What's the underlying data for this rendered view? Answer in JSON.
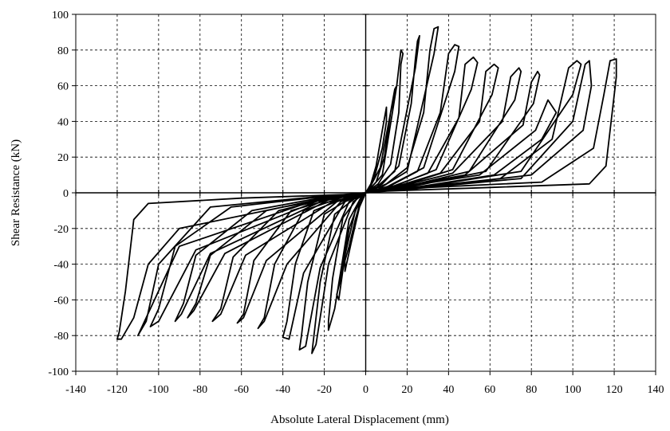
{
  "chart_data": {
    "type": "line",
    "title": "",
    "xlabel": "Absolute Lateral Displacement  (mm)",
    "ylabel": "Shear Resistance (kN)",
    "xlim": [
      -140,
      140
    ],
    "ylim": [
      -100,
      100
    ],
    "xticks": [
      -140,
      -120,
      -100,
      -80,
      -60,
      -40,
      -20,
      0,
      20,
      40,
      60,
      80,
      100,
      120,
      140
    ],
    "yticks": [
      -100,
      -80,
      -60,
      -40,
      -20,
      0,
      20,
      40,
      60,
      80,
      100
    ],
    "grid": true,
    "legend": "none",
    "line_color": "#000000",
    "series": [
      {
        "description": "hysteresis loop",
        "values": [
          [
            0,
            0
          ],
          [
            4,
            8
          ],
          [
            8,
            25
          ],
          [
            10,
            40
          ],
          [
            10,
            48
          ],
          [
            8,
            35
          ],
          [
            5,
            15
          ],
          [
            2,
            3
          ],
          [
            0,
            0
          ],
          [
            -2,
            -3
          ],
          [
            -5,
            -15
          ],
          [
            -8,
            -30
          ],
          [
            -10,
            -38
          ],
          [
            -10,
            -44
          ],
          [
            -7,
            -28
          ],
          [
            -3,
            -8
          ],
          [
            0,
            0
          ],
          [
            5,
            6
          ],
          [
            9,
            20
          ],
          [
            12,
            45
          ],
          [
            14,
            58
          ],
          [
            15,
            60
          ],
          [
            12,
            45
          ],
          [
            7,
            14
          ],
          [
            2,
            3
          ],
          [
            -3,
            -4
          ],
          [
            -8,
            -20
          ],
          [
            -12,
            -48
          ],
          [
            -14,
            -57
          ],
          [
            -13,
            -60
          ],
          [
            -10,
            -35
          ],
          [
            -5,
            -10
          ],
          [
            0,
            0
          ],
          [
            6,
            5
          ],
          [
            12,
            16
          ],
          [
            16,
            45
          ],
          [
            17,
            72
          ],
          [
            18,
            78
          ],
          [
            17,
            80
          ],
          [
            15,
            60
          ],
          [
            8,
            10
          ],
          [
            2,
            2
          ],
          [
            -4,
            -3
          ],
          [
            -11,
            -14
          ],
          [
            -16,
            -48
          ],
          [
            -18,
            -72
          ],
          [
            -18,
            -77
          ],
          [
            -15,
            -65
          ],
          [
            -8,
            -15
          ],
          [
            -2,
            -2
          ],
          [
            0,
            0
          ],
          [
            8,
            5
          ],
          [
            16,
            15
          ],
          [
            22,
            50
          ],
          [
            24,
            75
          ],
          [
            25,
            85
          ],
          [
            26,
            88
          ],
          [
            24,
            70
          ],
          [
            14,
            12
          ],
          [
            4,
            2
          ],
          [
            -4,
            -2
          ],
          [
            -15,
            -12
          ],
          [
            -22,
            -50
          ],
          [
            -25,
            -80
          ],
          [
            -26,
            -90
          ],
          [
            -24,
            -85
          ],
          [
            -18,
            -40
          ],
          [
            -6,
            -5
          ],
          [
            0,
            0
          ],
          [
            10,
            5
          ],
          [
            20,
            14
          ],
          [
            28,
            45
          ],
          [
            31,
            80
          ],
          [
            33,
            92
          ],
          [
            35,
            93
          ],
          [
            33,
            78
          ],
          [
            20,
            12
          ],
          [
            6,
            2
          ],
          [
            -6,
            -2
          ],
          [
            -20,
            -12
          ],
          [
            -28,
            -50
          ],
          [
            -31,
            -80
          ],
          [
            -32,
            -88
          ],
          [
            -29,
            -86
          ],
          [
            -22,
            -42
          ],
          [
            -8,
            -5
          ],
          [
            0,
            0
          ],
          [
            12,
            4
          ],
          [
            25,
            12
          ],
          [
            36,
            45
          ],
          [
            40,
            78
          ],
          [
            43,
            83
          ],
          [
            45,
            82
          ],
          [
            43,
            68
          ],
          [
            28,
            14
          ],
          [
            8,
            2
          ],
          [
            -8,
            -2
          ],
          [
            -25,
            -10
          ],
          [
            -34,
            -40
          ],
          [
            -38,
            -72
          ],
          [
            -40,
            -81
          ],
          [
            -37,
            -82
          ],
          [
            -30,
            -45
          ],
          [
            -10,
            -5
          ],
          [
            0,
            0
          ],
          [
            14,
            4
          ],
          [
            30,
            11
          ],
          [
            45,
            42
          ],
          [
            48,
            72
          ],
          [
            52,
            76
          ],
          [
            54,
            73
          ],
          [
            51,
            58
          ],
          [
            34,
            13
          ],
          [
            10,
            2
          ],
          [
            -10,
            -2
          ],
          [
            -30,
            -10
          ],
          [
            -44,
            -40
          ],
          [
            -49,
            -70
          ],
          [
            -52,
            -76
          ],
          [
            -49,
            -72
          ],
          [
            -38,
            -40
          ],
          [
            -12,
            -5
          ],
          [
            0,
            0
          ],
          [
            16,
            4
          ],
          [
            36,
            11
          ],
          [
            55,
            40
          ],
          [
            58,
            68
          ],
          [
            62,
            72
          ],
          [
            64,
            70
          ],
          [
            61,
            55
          ],
          [
            42,
            13
          ],
          [
            12,
            2
          ],
          [
            -12,
            -2
          ],
          [
            -36,
            -10
          ],
          [
            -54,
            -38
          ],
          [
            -59,
            -68
          ],
          [
            -62,
            -73
          ],
          [
            -59,
            -70
          ],
          [
            -48,
            -38
          ],
          [
            -14,
            -5
          ],
          [
            0,
            0
          ],
          [
            18,
            4
          ],
          [
            42,
            11
          ],
          [
            66,
            40
          ],
          [
            70,
            65
          ],
          [
            74,
            70
          ],
          [
            75,
            68
          ],
          [
            72,
            52
          ],
          [
            50,
            12
          ],
          [
            14,
            2
          ],
          [
            -14,
            -2
          ],
          [
            -42,
            -10
          ],
          [
            -64,
            -36
          ],
          [
            -70,
            -65
          ],
          [
            -74,
            -72
          ],
          [
            -70,
            -68
          ],
          [
            -58,
            -35
          ],
          [
            -16,
            -5
          ],
          [
            0,
            0
          ],
          [
            20,
            4
          ],
          [
            48,
            10
          ],
          [
            76,
            38
          ],
          [
            80,
            62
          ],
          [
            83,
            68
          ],
          [
            84,
            66
          ],
          [
            81,
            50
          ],
          [
            58,
            12
          ],
          [
            16,
            2
          ],
          [
            -16,
            -2
          ],
          [
            -48,
            -10
          ],
          [
            -75,
            -35
          ],
          [
            -82,
            -62
          ],
          [
            -86,
            -70
          ],
          [
            -83,
            -66
          ],
          [
            -68,
            -34
          ],
          [
            -18,
            -4
          ],
          [
            0,
            0
          ],
          [
            22,
            4
          ],
          [
            55,
            10
          ],
          [
            82,
            35
          ],
          [
            88,
            52
          ],
          [
            92,
            45
          ],
          [
            85,
            30
          ],
          [
            62,
            10
          ],
          [
            18,
            2
          ],
          [
            -18,
            -2
          ],
          [
            -55,
            -10
          ],
          [
            -82,
            -35
          ],
          [
            -88,
            -62
          ],
          [
            -92,
            -72
          ],
          [
            -89,
            -68
          ],
          [
            -75,
            -34
          ],
          [
            -20,
            -4
          ],
          [
            0,
            0
          ],
          [
            25,
            3
          ],
          [
            65,
            8
          ],
          [
            90,
            30
          ],
          [
            98,
            70
          ],
          [
            102,
            74
          ],
          [
            104,
            72
          ],
          [
            100,
            55
          ],
          [
            75,
            12
          ],
          [
            20,
            2
          ],
          [
            -20,
            -2
          ],
          [
            -65,
            -8
          ],
          [
            -92,
            -30
          ],
          [
            -100,
            -65
          ],
          [
            -104,
            -75
          ],
          [
            -100,
            -72
          ],
          [
            -82,
            -32
          ],
          [
            -22,
            -4
          ],
          [
            0,
            0
          ],
          [
            28,
            3
          ],
          [
            75,
            8
          ],
          [
            100,
            40
          ],
          [
            106,
            72
          ],
          [
            108,
            74
          ],
          [
            109,
            60
          ],
          [
            105,
            35
          ],
          [
            80,
            10
          ],
          [
            22,
            2
          ],
          [
            -22,
            -2
          ],
          [
            -75,
            -8
          ],
          [
            -100,
            -40
          ],
          [
            -106,
            -72
          ],
          [
            -110,
            -80
          ],
          [
            -108,
            -75
          ],
          [
            -90,
            -30
          ],
          [
            -24,
            -4
          ],
          [
            0,
            0
          ],
          [
            30,
            3
          ],
          [
            85,
            6
          ],
          [
            110,
            25
          ],
          [
            115,
            55
          ],
          [
            118,
            74
          ],
          [
            121,
            75
          ],
          [
            121,
            65
          ],
          [
            116,
            15
          ],
          [
            108,
            5
          ],
          [
            60,
            3
          ],
          [
            10,
            1
          ],
          [
            -10,
            -1
          ],
          [
            -60,
            -3
          ],
          [
            -105,
            -6
          ],
          [
            -112,
            -15
          ],
          [
            -116,
            -55
          ],
          [
            -119,
            -78
          ],
          [
            -120,
            -82
          ],
          [
            -118,
            -82
          ],
          [
            -112,
            -70
          ],
          [
            -105,
            -40
          ],
          [
            -90,
            -20
          ],
          [
            -40,
            -8
          ],
          [
            -5,
            -1
          ],
          [
            0,
            0
          ]
        ]
      }
    ]
  }
}
